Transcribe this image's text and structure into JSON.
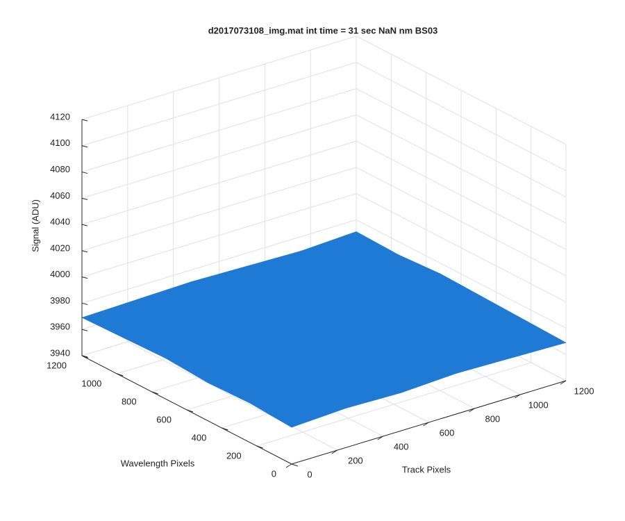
{
  "chart_data": {
    "type": "surface",
    "title": "d2017073108_img.mat int time = 31 sec  NaN nm BS03",
    "xlabel": "Track Pixels",
    "ylabel": "Wavelength Pixels",
    "zlabel": "Signal (ADU)",
    "x": [
      0,
      240,
      480,
      720,
      960,
      1200
    ],
    "y": [
      0,
      240,
      480,
      720,
      960,
      1200
    ],
    "z": [
      [
        3968,
        3970,
        3969,
        3971,
        3970,
        3969
      ],
      [
        3970,
        3971,
        3970,
        3972,
        3971,
        3970
      ],
      [
        3969,
        3972,
        3971,
        3970,
        3972,
        3971
      ],
      [
        3971,
        3970,
        3972,
        3971,
        3970,
        3972
      ],
      [
        3970,
        3971,
        3970,
        3972,
        3971,
        3970
      ],
      [
        3969,
        3970,
        3971,
        3970,
        3969,
        3971
      ]
    ],
    "color": "#1f7ad6",
    "xlim": [
      0,
      1200
    ],
    "ylim": [
      0,
      1200
    ],
    "zlim": [
      3940,
      4120
    ],
    "xticks": [
      0,
      200,
      400,
      600,
      800,
      1000,
      1200
    ],
    "yticks": [
      0,
      200,
      400,
      600,
      800,
      1000,
      1200
    ],
    "zticks": [
      3940,
      3960,
      3980,
      4000,
      4020,
      4040,
      4060,
      4080,
      4100,
      4120
    ],
    "grid": true
  }
}
